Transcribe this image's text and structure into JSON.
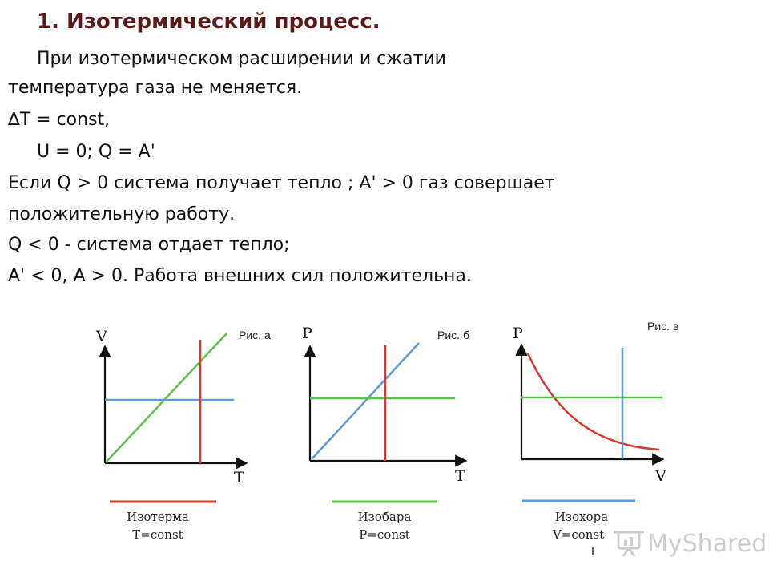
{
  "title": "1. Изотермический процесс.",
  "paragraphs": [
    "При изотермическом расширении и сжатии",
    "температура газа не меняется.",
    "∆T = const,",
    "U = 0; Q = A'",
    "Если Q > 0 система получает тепло ; A' > 0 газ совершает",
    "положительную работу.",
    "Q < 0 - система отдает тепло;",
    "A' < 0, A > 0. Работа внешних сил положительна."
  ],
  "figures": [
    {
      "fig_label": "Рис. а",
      "y_axis": "V",
      "x_axis": "T",
      "caption_line1": "Изотерма",
      "caption_line2": "T=const",
      "colors": {
        "diagonal": "#5cc04a",
        "horizontal": "#5a9ad6",
        "vertical": "#d93a2b",
        "bar": "#d93a2b"
      }
    },
    {
      "fig_label": "Рис. б",
      "y_axis": "P",
      "x_axis": "T",
      "caption_line1": "Изобара",
      "caption_line2": "P=const",
      "colors": {
        "diagonal": "#5a9ad6",
        "horizontal": "#5cc04a",
        "vertical": "#d93a2b",
        "bar": "#5cc04a"
      }
    },
    {
      "fig_label": "Рис. в",
      "y_axis": "P",
      "x_axis": "V",
      "caption_line1": "Изохора",
      "caption_line2": "V=const",
      "colors": {
        "curve": "#d93a2b",
        "horizontal": "#5cc04a",
        "vertical": "#5a9ad6",
        "bar": "#5a9ad6"
      }
    }
  ],
  "watermark": {
    "text": "MyShared",
    "icon": "presentation-board-icon",
    "color": "#c8c8c8"
  }
}
